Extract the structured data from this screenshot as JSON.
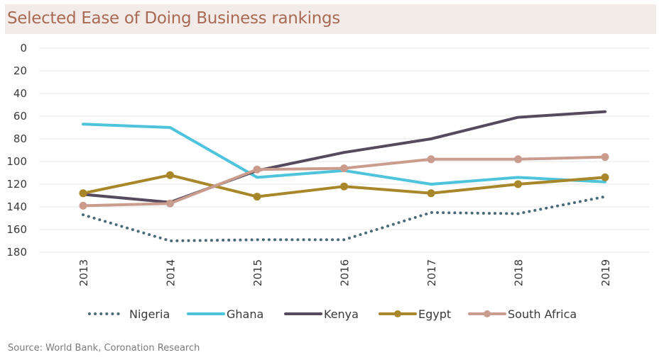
{
  "chart_data": {
    "type": "line",
    "title": "Selected Ease of Doing Business rankings",
    "xlabel": "",
    "ylabel": "",
    "x": [
      "2013",
      "2014",
      "2015",
      "2016",
      "2017",
      "2018",
      "2019"
    ],
    "yticks": [
      0,
      20,
      40,
      60,
      80,
      100,
      120,
      140,
      160,
      180
    ],
    "ylim": [
      0,
      180
    ],
    "y_inverted": true,
    "grid": true,
    "legend_position": "bottom",
    "series": [
      {
        "name": "Nigeria",
        "color": "#4a6b78",
        "style": "dotted",
        "markers": false,
        "values": [
          147,
          170,
          169,
          169,
          145,
          146,
          131
        ]
      },
      {
        "name": "Ghana",
        "color": "#4ec3dc",
        "style": "solid",
        "markers": false,
        "values": [
          67,
          70,
          114,
          108,
          120,
          114,
          118
        ]
      },
      {
        "name": "Kenya",
        "color": "#564a5e",
        "style": "solid",
        "markers": false,
        "values": [
          129,
          136,
          108,
          92,
          80,
          61,
          56
        ]
      },
      {
        "name": "Egypt",
        "color": "#a8862a",
        "style": "solid",
        "markers": true,
        "values": [
          128,
          112,
          131,
          122,
          128,
          120,
          114
        ]
      },
      {
        "name": "South Africa",
        "color": "#c99c8d",
        "style": "solid",
        "markers": true,
        "values": [
          139,
          137,
          107,
          106,
          98,
          98,
          96
        ]
      }
    ],
    "source": "Source: World Bank, Coronation Research"
  }
}
